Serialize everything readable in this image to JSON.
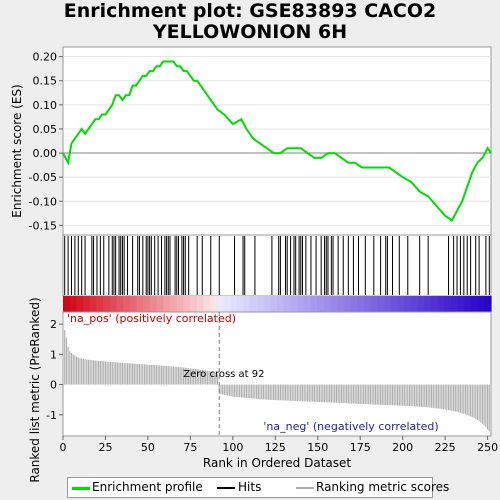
{
  "title": "Enrichment plot: GSE83893 CACO2\nYELLOWONION 6H",
  "colors": {
    "enrichment_line": "#00dd00",
    "hits": "#000000",
    "metric_fill": "#b0b0b0",
    "zero_cross_line": "#808080",
    "pos_label": "#cc0000",
    "neg_label": "#2222aa",
    "background": "#eeeeee",
    "plot_bg": "#ffffff"
  },
  "chart_data": {
    "type": "line",
    "panels": {
      "enrichment": {
        "ylabel": "Enrichment score (ES)",
        "ylim": [
          -0.17,
          0.22
        ],
        "yticks": [
          0.2,
          0.15,
          0.1,
          0.05,
          0.0,
          -0.05,
          -0.1,
          -0.15
        ],
        "ytick_labels": [
          "0.20",
          "0.15",
          "0.10",
          "0.05",
          "0.00",
          "-0.05",
          "-0.10",
          "-0.15"
        ],
        "series": [
          {
            "name": "Enrichment profile",
            "x": [
              0,
              3,
              5,
              7,
              9,
              11,
              13,
              15,
              17,
              19,
              21,
              23,
              25,
              27,
              29,
              31,
              33,
              35,
              37,
              39,
              41,
              43,
              45,
              47,
              49,
              51,
              53,
              55,
              57,
              59,
              61,
              63,
              65,
              67,
              69,
              71,
              73,
              75,
              77,
              79,
              81,
              83,
              85,
              87,
              89,
              91,
              95,
              100,
              105,
              108,
              112,
              116,
              120,
              124,
              128,
              132,
              136,
              140,
              144,
              148,
              152,
              156,
              160,
              164,
              168,
              172,
              176,
              180,
              184,
              188,
              192,
              196,
              200,
              205,
              210,
              215,
              220,
              225,
              229,
              232,
              235,
              238,
              241,
              244,
              247,
              250,
              252
            ],
            "y": [
              0.0,
              -0.02,
              0.02,
              0.03,
              0.04,
              0.05,
              0.04,
              0.05,
              0.06,
              0.07,
              0.07,
              0.08,
              0.08,
              0.09,
              0.1,
              0.12,
              0.12,
              0.11,
              0.12,
              0.12,
              0.14,
              0.14,
              0.15,
              0.16,
              0.16,
              0.17,
              0.17,
              0.18,
              0.18,
              0.19,
              0.19,
              0.19,
              0.19,
              0.18,
              0.18,
              0.17,
              0.17,
              0.16,
              0.15,
              0.15,
              0.14,
              0.13,
              0.12,
              0.11,
              0.1,
              0.09,
              0.08,
              0.06,
              0.07,
              0.05,
              0.03,
              0.02,
              0.01,
              0.0,
              0.0,
              0.01,
              0.01,
              0.01,
              0.0,
              -0.01,
              -0.01,
              0.0,
              0.0,
              -0.01,
              -0.02,
              -0.02,
              -0.03,
              -0.03,
              -0.03,
              -0.03,
              -0.03,
              -0.04,
              -0.05,
              -0.06,
              -0.08,
              -0.09,
              -0.11,
              -0.13,
              -0.14,
              -0.12,
              -0.1,
              -0.07,
              -0.04,
              -0.02,
              -0.01,
              0.01,
              0.0
            ]
          }
        ]
      },
      "hits": {
        "series_name": "Hits",
        "x": [
          1,
          3,
          5,
          7,
          9,
          11,
          13,
          17,
          18,
          20,
          22,
          24,
          27,
          29,
          30,
          31,
          33,
          34,
          35,
          36,
          38,
          41,
          44,
          45,
          47,
          49,
          50,
          51,
          52,
          54,
          56,
          58,
          60,
          61,
          62,
          63,
          66,
          67,
          68,
          70,
          71,
          72,
          74,
          79,
          82,
          87,
          92,
          101,
          106,
          107,
          113,
          123,
          127,
          128,
          131,
          132,
          134,
          136,
          137,
          139,
          140,
          141,
          143,
          146,
          149,
          152,
          154,
          155,
          156,
          158,
          159,
          162,
          165,
          168,
          171,
          174,
          178,
          183,
          187,
          190,
          191,
          194,
          198,
          203,
          210,
          215,
          227,
          230,
          232,
          234,
          236,
          238,
          240,
          243,
          245,
          249,
          251
        ]
      },
      "ranking": {
        "ylabel": "Ranked list metric (PreRanked)",
        "xlabel": "Rank in Ordered Dataset",
        "series_name": "Ranking metric scores",
        "xlim": [
          0,
          252
        ],
        "xticks": [
          0,
          25,
          50,
          75,
          100,
          125,
          150,
          175,
          200,
          225,
          250
        ],
        "ylim": [
          -1.7,
          2.4
        ],
        "yticks": [
          2,
          1,
          0,
          -1
        ],
        "x": [
          0,
          1,
          2,
          3,
          4,
          6,
          8,
          10,
          15,
          20,
          30,
          40,
          50,
          60,
          70,
          80,
          88,
          91,
          92,
          100,
          120,
          140,
          160,
          180,
          200,
          215,
          225,
          232,
          238,
          242,
          246,
          249,
          251,
          252
        ],
        "values": [
          2.3,
          1.8,
          1.55,
          1.25,
          1.1,
          1.0,
          0.92,
          0.87,
          0.82,
          0.79,
          0.74,
          0.7,
          0.66,
          0.62,
          0.57,
          0.5,
          0.43,
          0.36,
          -0.3,
          -0.4,
          -0.5,
          -0.55,
          -0.6,
          -0.65,
          -0.7,
          -0.75,
          -0.82,
          -0.9,
          -1.0,
          -1.1,
          -1.25,
          -1.4,
          -1.55,
          -1.6
        ],
        "zero_cross_rank": 92,
        "zero_cross_label": "Zero cross at 92",
        "pos_label": "'na_pos' (positively correlated)",
        "neg_label": "'na_neg' (negatively correlated)"
      }
    },
    "legend": {
      "position": "bottom",
      "entries": [
        "Enrichment profile",
        "Hits",
        "Ranking metric scores"
      ]
    }
  }
}
